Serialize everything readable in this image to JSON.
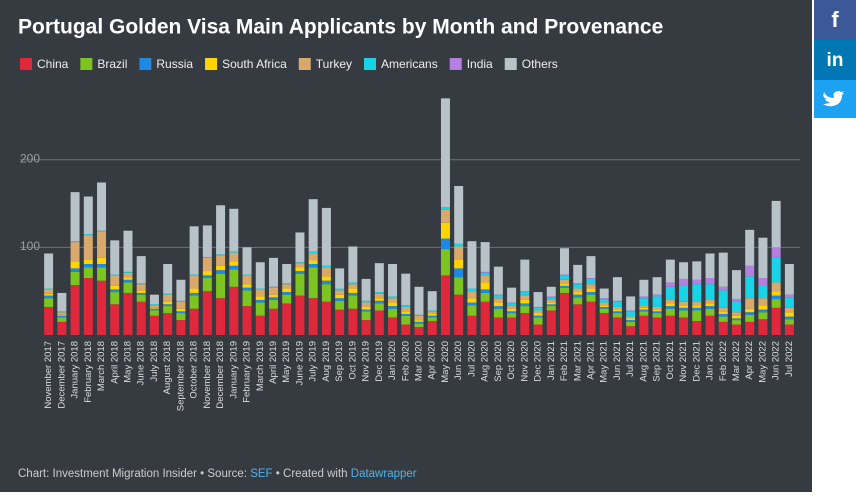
{
  "chart_data": {
    "type": "bar",
    "stacked": true,
    "title": "Portugal Golden Visa Main Applicants by Month and Provenance",
    "categories": [
      "November 2017",
      "December 2017",
      "January 2018",
      "February 2018",
      "March 2018",
      "April 2018",
      "May 2018",
      "June 2018",
      "July 2018",
      "August 2018",
      "September 2018",
      "October 2018",
      "November 2018",
      "December 2018",
      "January 2019",
      "February 2019",
      "March 2019",
      "April 2019",
      "May 2019",
      "June 2019",
      "July 2019",
      "Aug 2019",
      "Sep 2019",
      "Oct 2019",
      "Nov 2019",
      "Dec 2019",
      "Jan 2020",
      "Feb 2020",
      "Mar 2020",
      "Apr 2020",
      "May 2020",
      "Jun 2020",
      "Jul 2020",
      "Aug 2020",
      "Sep 2020",
      "Oct 2020",
      "Nov 2020",
      "Dec 2020",
      "Jan 2021",
      "Feb 2021",
      "Mar 2021",
      "Apr 2021",
      "May 2021",
      "Jun 2021",
      "Jul 2021",
      "Aug 2021",
      "Sep 2021",
      "Oct 2021",
      "Nov 2021",
      "Dec 2021",
      "Jan 2022",
      "Feb 2022",
      "Mar 2022",
      "Apr 2022",
      "May 2022",
      "Jun 2022",
      "Jul 2022"
    ],
    "series": [
      {
        "name": "China",
        "color": "#e0283c",
        "values": [
          32,
          15,
          57,
          65,
          62,
          35,
          48,
          38,
          22,
          25,
          17,
          30,
          50,
          42,
          55,
          33,
          22,
          30,
          36,
          45,
          42,
          38,
          29,
          30,
          17,
          28,
          20,
          12,
          9,
          16,
          68,
          46,
          22,
          38,
          20,
          20,
          25,
          12,
          28,
          48,
          35,
          38,
          25,
          20,
          10,
          22,
          20,
          22,
          20,
          16,
          22,
          15,
          12,
          15,
          18,
          31,
          12
        ]
      },
      {
        "name": "Brazil",
        "color": "#7cc520",
        "values": [
          10,
          5,
          15,
          12,
          15,
          14,
          12,
          8,
          6,
          8,
          8,
          15,
          15,
          28,
          20,
          18,
          15,
          10,
          10,
          25,
          35,
          20,
          10,
          15,
          10,
          8,
          10,
          10,
          4,
          4,
          30,
          20,
          12,
          10,
          10,
          5,
          8,
          8,
          5,
          6,
          8,
          8,
          5,
          5,
          5,
          5,
          5,
          8,
          8,
          12,
          8,
          6,
          5,
          8,
          8,
          10,
          6
        ]
      },
      {
        "name": "Russia",
        "color": "#1e88e5",
        "values": [
          3,
          2,
          4,
          4,
          4,
          3,
          3,
          2,
          2,
          2,
          2,
          3,
          3,
          4,
          4,
          3,
          3,
          3,
          3,
          3,
          4,
          4,
          3,
          3,
          2,
          3,
          3,
          2,
          2,
          2,
          12,
          10,
          3,
          4,
          3,
          2,
          3,
          2,
          2,
          2,
          3,
          3,
          2,
          2,
          2,
          2,
          2,
          3,
          3,
          3,
          3,
          3,
          2,
          3,
          3,
          4,
          3
        ]
      },
      {
        "name": "South Africa",
        "color": "#ffd500",
        "values": [
          2,
          1,
          8,
          5,
          7,
          4,
          3,
          3,
          1,
          3,
          3,
          5,
          5,
          5,
          5,
          4,
          4,
          3,
          4,
          4,
          4,
          5,
          4,
          5,
          3,
          3,
          4,
          3,
          2,
          2,
          18,
          10,
          5,
          8,
          4,
          3,
          4,
          3,
          2,
          3,
          3,
          4,
          2,
          2,
          2,
          2,
          2,
          3,
          3,
          3,
          3,
          3,
          3,
          4,
          5,
          5,
          5
        ]
      },
      {
        "name": "Turkey",
        "color": "#d9a86c",
        "values": [
          5,
          3,
          22,
          28,
          30,
          12,
          5,
          7,
          3,
          8,
          8,
          15,
          15,
          12,
          10,
          10,
          8,
          8,
          5,
          5,
          8,
          10,
          5,
          5,
          5,
          5,
          5,
          5,
          5,
          3,
          15,
          15,
          8,
          8,
          5,
          3,
          5,
          3,
          3,
          4,
          4,
          5,
          3,
          3,
          2,
          3,
          3,
          4,
          4,
          4,
          4,
          4,
          4,
          12,
          8,
          10,
          5
        ]
      },
      {
        "name": "Americans",
        "color": "#19d3e6",
        "values": [
          1,
          1,
          1,
          1,
          1,
          1,
          1,
          1,
          1,
          1,
          1,
          1,
          1,
          1,
          1,
          1,
          1,
          1,
          1,
          1,
          2,
          2,
          2,
          2,
          2,
          2,
          2,
          2,
          1,
          1,
          3,
          3,
          3,
          3,
          3,
          3,
          4,
          3,
          3,
          5,
          5,
          6,
          4,
          6,
          6,
          8,
          12,
          15,
          18,
          20,
          18,
          20,
          12,
          25,
          15,
          28,
          12
        ]
      },
      {
        "name": "India",
        "color": "#b57fe0",
        "values": [
          0,
          0,
          0,
          0,
          0,
          0,
          0,
          0,
          0,
          0,
          0,
          0,
          0,
          0,
          0,
          0,
          0,
          0,
          0,
          0,
          0,
          0,
          0,
          0,
          0,
          0,
          0,
          0,
          0,
          0,
          0,
          0,
          0,
          1,
          1,
          1,
          1,
          1,
          1,
          1,
          1,
          1,
          1,
          1,
          1,
          2,
          2,
          5,
          8,
          5,
          7,
          4,
          3,
          12,
          8,
          12,
          3
        ]
      },
      {
        "name": "Others",
        "color": "#b7c3c9",
        "values": [
          40,
          21,
          56,
          43,
          55,
          39,
          47,
          31,
          11,
          34,
          24,
          55,
          36,
          56,
          49,
          31,
          30,
          33,
          22,
          34,
          60,
          66,
          23,
          41,
          25,
          33,
          37,
          36,
          32,
          22,
          124,
          66,
          54,
          34,
          32,
          17,
          36,
          17,
          11,
          30,
          21,
          25,
          11,
          27,
          16,
          19,
          20,
          26,
          19,
          21,
          28,
          39,
          33,
          41,
          46,
          53,
          35
        ]
      }
    ],
    "ylim": [
      0,
      280
    ],
    "yticks": [
      100,
      200
    ],
    "grid": true,
    "footer": {
      "prefix": "Chart: Investment Migration Insider • Source: ",
      "source": "SEF",
      "middle": " • Created with ",
      "tool": "Datawrapper"
    }
  },
  "social": [
    "f",
    "in"
  ]
}
